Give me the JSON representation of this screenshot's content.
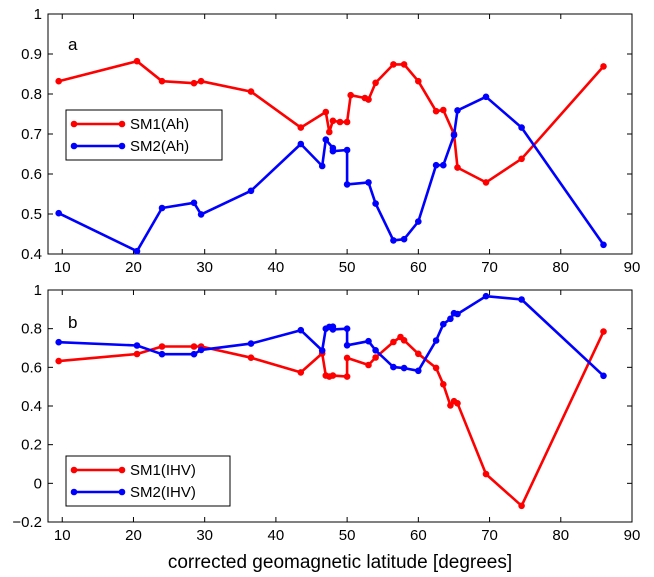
{
  "chart_data": [
    {
      "type": "line",
      "panel_label": "a",
      "xlabel": "",
      "ylabel": "",
      "xlim": [
        8,
        90
      ],
      "ylim": [
        0.4,
        1.0
      ],
      "xticks": [
        "10",
        "20",
        "30",
        "40",
        "50",
        "60",
        "70",
        "80",
        "90"
      ],
      "yticks": [
        "0.4",
        "0.5",
        "0.6",
        "0.7",
        "0.8",
        "0.9",
        "1"
      ],
      "legend_position": "middle-left",
      "series": [
        {
          "name": "SM1(Ah)",
          "color": "#ff0000",
          "x": [
            9.5,
            20.5,
            24,
            28.5,
            29.5,
            36.5,
            43.5,
            47,
            47.5,
            48,
            49,
            50,
            50.5,
            52.5,
            53,
            54,
            56.5,
            58,
            60,
            62.5,
            63.5,
            65,
            65.5,
            69.5,
            74.5,
            86
          ],
          "y": [
            0.832,
            0.882,
            0.832,
            0.827,
            0.832,
            0.806,
            0.716,
            0.755,
            0.705,
            0.733,
            0.73,
            0.73,
            0.797,
            0.79,
            0.786,
            0.828,
            0.874,
            0.874,
            0.832,
            0.757,
            0.76,
            0.7,
            0.616,
            0.579,
            0.638,
            0.869
          ]
        },
        {
          "name": "SM2(Ah)",
          "color": "#0000ff",
          "x": [
            9.5,
            20.5,
            24,
            28.5,
            29.5,
            36.5,
            43.5,
            46.5,
            47,
            48,
            48,
            50,
            50,
            53,
            54,
            56.5,
            58,
            60,
            62.5,
            63.5,
            65,
            65.5,
            69.5,
            74.5,
            86
          ],
          "y": [
            0.502,
            0.407,
            0.515,
            0.528,
            0.499,
            0.558,
            0.675,
            0.62,
            0.686,
            0.665,
            0.657,
            0.66,
            0.574,
            0.579,
            0.526,
            0.434,
            0.437,
            0.481,
            0.622,
            0.622,
            0.697,
            0.759,
            0.793,
            0.716,
            0.423
          ]
        }
      ]
    },
    {
      "type": "line",
      "panel_label": "b",
      "xlabel": "corrected geomagnetic latitude [degrees]",
      "ylabel": "",
      "xlim": [
        8,
        90
      ],
      "ylim": [
        -0.2,
        1.0
      ],
      "xticks": [
        "10",
        "20",
        "30",
        "40",
        "50",
        "60",
        "70",
        "80",
        "90"
      ],
      "yticks": [
        "−0.2",
        "0",
        "0.2",
        "0.4",
        "0.6",
        "0.8",
        "1"
      ],
      "legend_position": "bottom-left",
      "series": [
        {
          "name": "SM1(IHV)",
          "color": "#ff0000",
          "x": [
            9.5,
            20.5,
            24,
            28.5,
            29.5,
            36.5,
            43.5,
            46.5,
            47,
            47.5,
            48,
            50,
            50,
            53,
            54,
            56.5,
            57.5,
            58,
            60,
            62.5,
            63.5,
            64.5,
            65,
            65.5,
            69.5,
            74.5,
            86
          ],
          "y": [
            0.632,
            0.669,
            0.708,
            0.708,
            0.708,
            0.65,
            0.574,
            0.672,
            0.557,
            0.552,
            0.557,
            0.552,
            0.649,
            0.612,
            0.651,
            0.731,
            0.757,
            0.74,
            0.67,
            0.597,
            0.512,
            0.403,
            0.425,
            0.414,
            0.048,
            -0.116,
            0.785
          ]
        },
        {
          "name": "SM2(IHV)",
          "color": "#0000ff",
          "x": [
            9.5,
            20.5,
            24,
            28.5,
            29.5,
            36.5,
            43.5,
            46.5,
            47,
            47.5,
            48,
            48,
            50,
            50,
            53,
            54,
            56.5,
            58,
            60,
            62.5,
            63.5,
            64.5,
            65,
            65.5,
            69.5,
            74.5,
            86
          ],
          "y": [
            0.73,
            0.713,
            0.668,
            0.668,
            0.69,
            0.723,
            0.792,
            0.687,
            0.8,
            0.809,
            0.81,
            0.796,
            0.8,
            0.714,
            0.735,
            0.688,
            0.601,
            0.596,
            0.582,
            0.739,
            0.823,
            0.851,
            0.88,
            0.876,
            0.968,
            0.951,
            0.556
          ]
        }
      ]
    }
  ]
}
